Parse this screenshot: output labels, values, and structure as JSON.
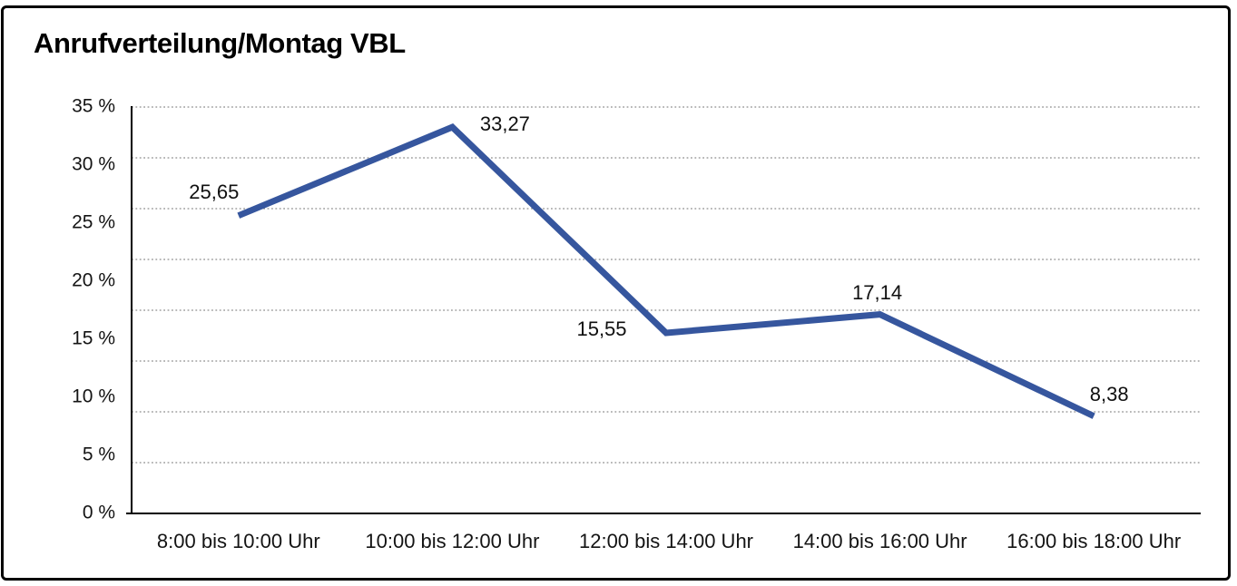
{
  "title": "Anrufverteilung/Montag VBL",
  "colors": {
    "line": "#36569E",
    "gridline": "#8c8c8c",
    "axis": "#000000",
    "text": "#141414",
    "background": "#ffffff",
    "border": "#000000"
  },
  "chart_data": {
    "type": "line",
    "title": "Anrufverteilung/Montag VBL",
    "categories": [
      "8:00 bis 10:00 Uhr",
      "10:00 bis 12:00 Uhr",
      "12:00 bis 14:00 Uhr",
      "14:00 bis 16:00 Uhr",
      "16:00 bis 18:00 Uhr"
    ],
    "values": [
      25.65,
      33.27,
      15.55,
      17.14,
      8.38
    ],
    "value_labels": [
      "25,65",
      "33,27",
      "15,55",
      "17,14",
      "8,38"
    ],
    "xlabel": "",
    "ylabel": "",
    "ylim": [
      0,
      35
    ],
    "y_tick_labels": [
      "0 %",
      "5 %",
      "10 %",
      "15 %",
      "20 %",
      "25 %",
      "30 %",
      "35 %"
    ],
    "y_tick_step": 5,
    "grid": "horizontal-dotted",
    "grid_intervals": 8,
    "legend": "none"
  }
}
